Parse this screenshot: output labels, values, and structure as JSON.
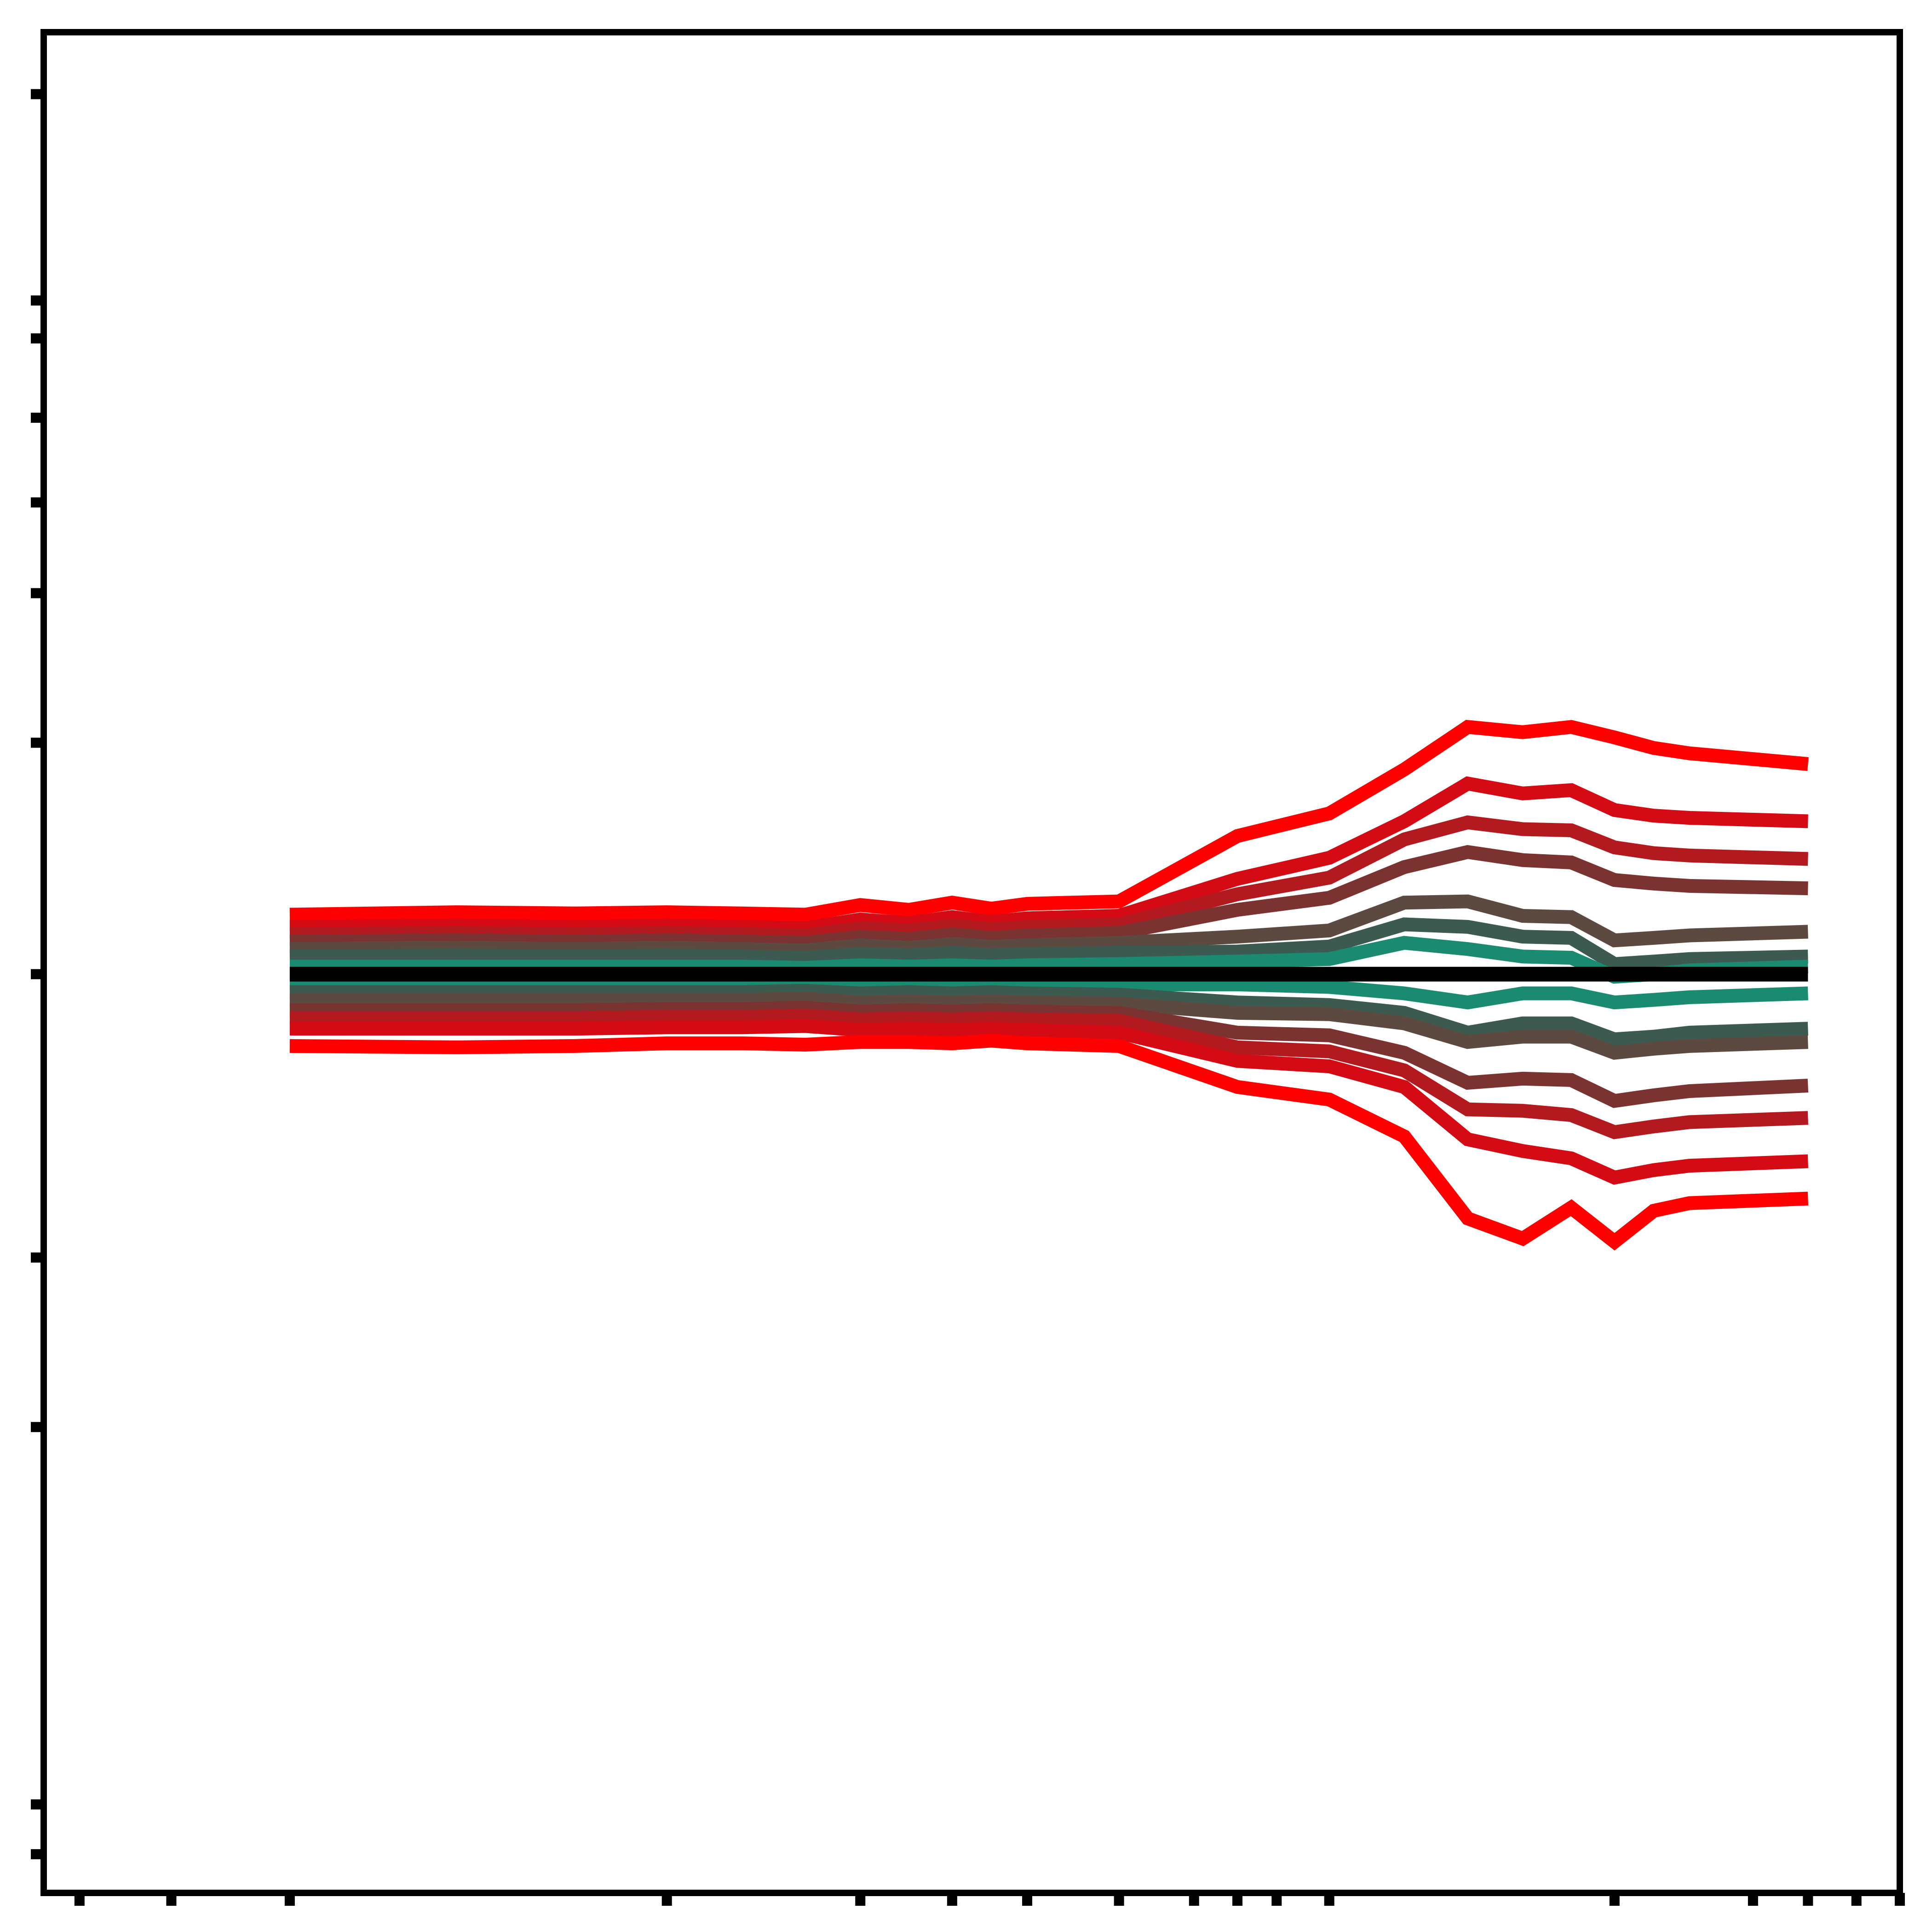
{
  "chart_data": {
    "type": "line",
    "title": "",
    "xlabel": "",
    "ylabel": "",
    "x_scale": "log",
    "y_scale": "log",
    "grid": false,
    "legend": "none",
    "tick_labels_shown": false,
    "xlim": [
      1.1,
      100
    ],
    "ylim": [
      0.485,
      2.1
    ],
    "x": [
      2,
      3,
      4,
      5,
      6,
      7,
      8,
      9,
      10,
      11,
      12,
      15,
      20,
      25,
      30,
      35,
      40,
      45,
      50,
      55,
      60,
      80
    ],
    "x_ticks": [
      1.2,
      1.5,
      2,
      5,
      8,
      10,
      12,
      15,
      18,
      20,
      22,
      25,
      50,
      70,
      80,
      90,
      100,
      110,
      120,
      125,
      130,
      180
    ],
    "y_ticks": [
      0.5,
      0.52,
      0.7,
      0.8,
      1.0,
      1.2,
      1.35,
      1.45,
      1.55,
      1.65,
      1.7,
      2.0
    ],
    "baseline": {
      "y": 1.0,
      "color": "#000000"
    },
    "series": [
      {
        "color": "#ff0000",
        "values": [
          1.048,
          1.05,
          1.049,
          1.05,
          1.049,
          1.048,
          1.056,
          1.052,
          1.058,
          1.053,
          1.057,
          1.059,
          1.115,
          1.135,
          1.175,
          1.215,
          1.21,
          1.215,
          1.205,
          1.195,
          1.19,
          1.18
        ]
      },
      {
        "color": "#d40a14",
        "values": [
          1.038,
          1.039,
          1.038,
          1.039,
          1.038,
          1.037,
          1.044,
          1.041,
          1.046,
          1.042,
          1.045,
          1.047,
          1.078,
          1.096,
          1.128,
          1.162,
          1.153,
          1.156,
          1.138,
          1.133,
          1.131,
          1.128
        ]
      },
      {
        "color": "#b31a1f",
        "values": [
          1.032,
          1.033,
          1.032,
          1.033,
          1.032,
          1.031,
          1.037,
          1.035,
          1.039,
          1.036,
          1.038,
          1.04,
          1.065,
          1.079,
          1.112,
          1.127,
          1.121,
          1.12,
          1.105,
          1.1,
          1.098,
          1.095
        ]
      },
      {
        "color": "#7a3330",
        "values": [
          1.026,
          1.027,
          1.026,
          1.027,
          1.026,
          1.025,
          1.03,
          1.028,
          1.032,
          1.029,
          1.031,
          1.033,
          1.052,
          1.062,
          1.088,
          1.101,
          1.094,
          1.092,
          1.077,
          1.074,
          1.072,
          1.07
        ]
      },
      {
        "color": "#5c4a40",
        "values": [
          1.02,
          1.021,
          1.02,
          1.021,
          1.02,
          1.019,
          1.023,
          1.021,
          1.024,
          1.022,
          1.023,
          1.025,
          1.03,
          1.035,
          1.058,
          1.059,
          1.047,
          1.046,
          1.027,
          1.029,
          1.031,
          1.034
        ]
      },
      {
        "color": "#3d5a50",
        "values": [
          1.014,
          1.015,
          1.014,
          1.015,
          1.014,
          1.013,
          1.016,
          1.015,
          1.017,
          1.015,
          1.016,
          1.017,
          1.018,
          1.022,
          1.04,
          1.038,
          1.03,
          1.029,
          1.008,
          1.01,
          1.012,
          1.014
        ]
      },
      {
        "color": "#1a8a70",
        "values": [
          1.006,
          1.006,
          1.006,
          1.006,
          1.006,
          1.005,
          1.007,
          1.006,
          1.007,
          1.006,
          1.007,
          1.008,
          1.01,
          1.012,
          1.025,
          1.02,
          1.014,
          1.013,
          0.998,
          1.0,
          1.003,
          1.006
        ]
      },
      {
        "color": "#1a8a70",
        "values": [
          0.994,
          0.994,
          0.994,
          0.994,
          0.994,
          0.995,
          0.993,
          0.994,
          0.993,
          0.994,
          0.993,
          0.992,
          0.992,
          0.99,
          0.985,
          0.978,
          0.985,
          0.985,
          0.978,
          0.98,
          0.982,
          0.985
        ]
      },
      {
        "color": "#3d5a50",
        "values": [
          0.986,
          0.986,
          0.986,
          0.986,
          0.986,
          0.987,
          0.985,
          0.986,
          0.985,
          0.986,
          0.985,
          0.984,
          0.978,
          0.976,
          0.97,
          0.955,
          0.962,
          0.962,
          0.95,
          0.952,
          0.955,
          0.958
        ]
      },
      {
        "color": "#5c4a40",
        "values": [
          0.98,
          0.98,
          0.98,
          0.98,
          0.98,
          0.981,
          0.978,
          0.979,
          0.978,
          0.979,
          0.978,
          0.977,
          0.97,
          0.969,
          0.962,
          0.948,
          0.952,
          0.952,
          0.94,
          0.943,
          0.945,
          0.948
        ]
      },
      {
        "color": "#7a3330",
        "values": [
          0.972,
          0.972,
          0.972,
          0.973,
          0.973,
          0.974,
          0.971,
          0.972,
          0.971,
          0.972,
          0.971,
          0.97,
          0.955,
          0.953,
          0.94,
          0.918,
          0.921,
          0.92,
          0.905,
          0.909,
          0.912,
          0.916
        ]
      },
      {
        "color": "#b31a1f",
        "values": [
          0.966,
          0.966,
          0.966,
          0.967,
          0.967,
          0.968,
          0.965,
          0.966,
          0.965,
          0.966,
          0.965,
          0.964,
          0.944,
          0.941,
          0.927,
          0.899,
          0.898,
          0.895,
          0.883,
          0.887,
          0.89,
          0.893
        ]
      },
      {
        "color": "#d40a14",
        "values": [
          0.958,
          0.958,
          0.958,
          0.959,
          0.959,
          0.96,
          0.957,
          0.958,
          0.957,
          0.958,
          0.957,
          0.955,
          0.934,
          0.93,
          0.915,
          0.878,
          0.87,
          0.865,
          0.852,
          0.857,
          0.86,
          0.863
        ]
      },
      {
        "color": "#ff0000",
        "values": [
          0.945,
          0.944,
          0.945,
          0.947,
          0.947,
          0.946,
          0.948,
          0.948,
          0.947,
          0.949,
          0.947,
          0.945,
          0.915,
          0.906,
          0.88,
          0.825,
          0.812,
          0.832,
          0.81,
          0.83,
          0.835,
          0.838
        ]
      }
    ]
  }
}
